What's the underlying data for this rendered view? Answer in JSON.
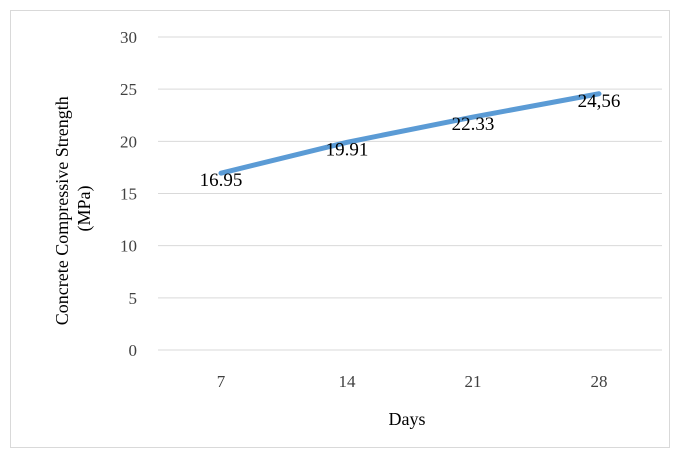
{
  "chart_data": {
    "type": "line",
    "categories": [
      "7",
      "14",
      "21",
      "28"
    ],
    "series": [
      {
        "values": [
          16.95,
          19.91,
          22.33,
          24.56
        ],
        "labels": [
          "16.95",
          "19.91",
          "22.33",
          "24,56"
        ]
      }
    ],
    "xlabel": "Days",
    "ylabel_lines": [
      "Concrete Compressive Strength",
      "(MPa)"
    ],
    "ylim": [
      0,
      30
    ],
    "yticks": [
      0,
      5,
      10,
      15,
      20,
      25,
      30
    ],
    "grid": true,
    "legend": "none",
    "line_color": "#5b9bd5"
  }
}
